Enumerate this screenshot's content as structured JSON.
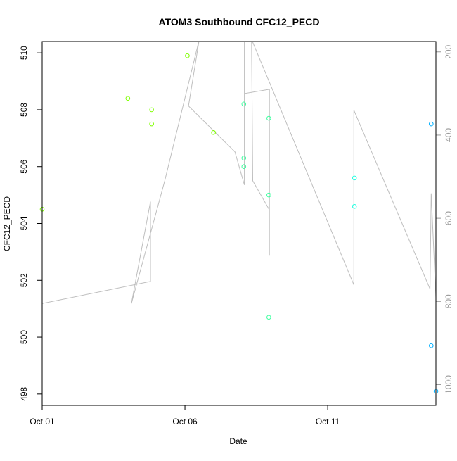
{
  "chart_data": {
    "type": "scatter",
    "title": "ATOM3 Southbound CFC12_PECD",
    "xlabel": "Date",
    "ylabel": "CFC12_PECD",
    "y2label": "",
    "x_ticks": [
      "Oct 01",
      "Oct 06",
      "Oct 11"
    ],
    "x_tick_values": [
      "2016-10-01",
      "2016-10-06",
      "2016-10-11"
    ],
    "xlim": [
      "2016-10-01",
      "2016-10-14.79"
    ],
    "ylim": [
      497.6,
      510.4
    ],
    "y_ticks": [
      498,
      500,
      502,
      504,
      506,
      508,
      510
    ],
    "y2lim": [
      1050,
      175
    ],
    "y2_ticks": [
      200,
      400,
      600,
      800,
      1000
    ],
    "y2_reversed": true,
    "grid": false,
    "series": [
      {
        "kind": "points",
        "marker": "open-circle",
        "points": [
          {
            "x": "2016-10-01T00:00",
            "y": 504.5,
            "color": "#7fff00"
          },
          {
            "x": "2016-10-04T00:00",
            "y": 508.4,
            "color": "#7fff00"
          },
          {
            "x": "2016-10-04T20:00",
            "y": 508.0,
            "color": "#7fff00"
          },
          {
            "x": "2016-10-04T20:00",
            "y": 507.5,
            "color": "#7fff00"
          },
          {
            "x": "2016-10-06T02:00",
            "y": 509.9,
            "color": "#7fff00"
          },
          {
            "x": "2016-10-07T00:00",
            "y": 507.2,
            "color": "#7fff00"
          },
          {
            "x": "2016-10-08T01:30",
            "y": 508.2,
            "color": "#3fffa0"
          },
          {
            "x": "2016-10-08T01:30",
            "y": 506.3,
            "color": "#3fffa0"
          },
          {
            "x": "2016-10-08T01:30",
            "y": 506.0,
            "color": "#3fffa0"
          },
          {
            "x": "2016-10-08T22:30",
            "y": 507.7,
            "color": "#3fffa0"
          },
          {
            "x": "2016-10-08T22:30",
            "y": 505.0,
            "color": "#3fffa0"
          },
          {
            "x": "2016-10-08T22:30",
            "y": 500.7,
            "color": "#3fffa0"
          },
          {
            "x": "2016-10-11T22:30",
            "y": 505.6,
            "color": "#20ffe0"
          },
          {
            "x": "2016-10-11T22:30",
            "y": 504.6,
            "color": "#20ffe0"
          },
          {
            "x": "2016-10-14T15:00",
            "y": 507.5,
            "color": "#00b0ff"
          },
          {
            "x": "2016-10-14T15:00",
            "y": 499.7,
            "color": "#00b0ff"
          },
          {
            "x": "2016-10-14T19:00",
            "y": 498.1,
            "color": "#00b0ff"
          }
        ]
      },
      {
        "kind": "line",
        "axis": "right",
        "color": "#bebebe",
        "points": [
          {
            "x": "2016-10-01T00:00",
            "y": 805
          },
          {
            "x": "2016-10-04T19:00",
            "y": 752
          },
          {
            "x": "2016-10-04T19:00",
            "y": 560
          },
          {
            "x": "2016-10-04T03:00",
            "y": 805
          },
          {
            "x": "2016-10-05T07:00",
            "y": 510
          },
          {
            "x": "2016-10-06T12:00",
            "y": 170
          },
          {
            "x": "2016-10-06T03:00",
            "y": 330
          },
          {
            "x": "2016-10-07T18:00",
            "y": 440
          },
          {
            "x": "2016-10-08T02:00",
            "y": 520
          },
          {
            "x": "2016-10-08T02:00",
            "y": 170
          },
          {
            "x": "2016-10-08T02:00",
            "y": 520
          },
          {
            "x": "2016-10-08T02:00",
            "y": 300
          },
          {
            "x": "2016-10-08T23:00",
            "y": 290
          },
          {
            "x": "2016-10-08T23:00",
            "y": 690
          },
          {
            "x": "2016-10-08T23:00",
            "y": 580
          },
          {
            "x": "2016-10-08T09:00",
            "y": 510
          },
          {
            "x": "2016-10-08T08:00",
            "y": 170
          },
          {
            "x": "2016-10-11T22:00",
            "y": 760
          },
          {
            "x": "2016-10-11T22:00",
            "y": 340
          },
          {
            "x": "2016-10-14T14:00",
            "y": 770
          },
          {
            "x": "2016-10-14T15:00",
            "y": 540
          },
          {
            "x": "2016-10-14T19:00",
            "y": 795
          }
        ]
      }
    ]
  }
}
